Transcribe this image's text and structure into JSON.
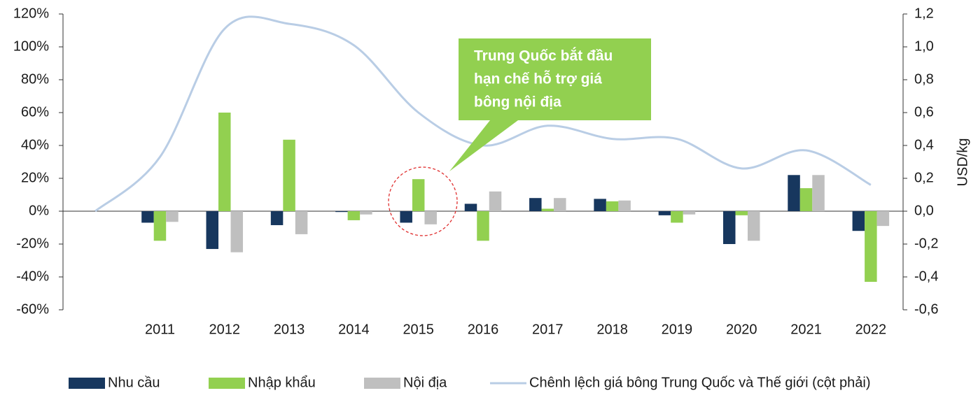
{
  "chart_data": {
    "type": "bar",
    "categories": [
      null,
      "2011",
      "2012",
      "2013",
      "2014",
      "2015",
      "2016",
      "2017",
      "2018",
      "2019",
      "2020",
      "2021",
      "2022"
    ],
    "series": [
      {
        "name": "Nhu cầu",
        "color": "#17375e",
        "values": [
          null,
          -7,
          -23,
          -8.5,
          -0.5,
          -7,
          4.5,
          8,
          7.5,
          -2.5,
          -20,
          22,
          -12
        ]
      },
      {
        "name": "Nhập khẩu",
        "color": "#92d050",
        "values": [
          null,
          -18,
          60,
          43.5,
          -5.5,
          19.5,
          -18,
          1.5,
          6,
          -7,
          -2.5,
          14,
          -43
        ]
      },
      {
        "name": "Nội địa",
        "color": "#bfbfbf",
        "values": [
          null,
          -6.5,
          -25,
          -14,
          -2,
          -8,
          12,
          8,
          6.5,
          -2,
          -18,
          22,
          -9
        ]
      },
      {
        "name": "Chênh lệch giá bông Trung Quốc và Thế giới (cột phải)",
        "color": "#b9cde5",
        "type": "line",
        "axis": "y2",
        "values": [
          0,
          0.33,
          1.11,
          1.14,
          1.01,
          0.6,
          0.4,
          0.52,
          0.44,
          0.44,
          0.26,
          0.37,
          0.16
        ]
      }
    ],
    "ylim": [
      -60,
      120
    ],
    "yticks": [
      {
        "value": -60,
        "label": "-60%"
      },
      {
        "value": -40,
        "label": "-40%"
      },
      {
        "value": -20,
        "label": "-20%"
      },
      {
        "value": 0,
        "label": "0%"
      },
      {
        "value": 20,
        "label": "20%"
      },
      {
        "value": 40,
        "label": "40%"
      },
      {
        "value": 60,
        "label": "60%"
      },
      {
        "value": 80,
        "label": "80%"
      },
      {
        "value": 100,
        "label": "100%"
      },
      {
        "value": 120,
        "label": "120%"
      }
    ],
    "y2lim": [
      -0.6,
      1.2
    ],
    "y2ticks": [
      {
        "value": -0.6,
        "label": "-0,6"
      },
      {
        "value": -0.4,
        "label": "-0,4"
      },
      {
        "value": -0.2,
        "label": "-0,2"
      },
      {
        "value": 0,
        "label": "0,0"
      },
      {
        "value": 0.2,
        "label": "0,2"
      },
      {
        "value": 0.4,
        "label": "0,4"
      },
      {
        "value": 0.6,
        "label": "0,6"
      },
      {
        "value": 0.8,
        "label": "0,8"
      },
      {
        "value": 1.0,
        "label": "1,0"
      },
      {
        "value": 1.2,
        "label": "1,2"
      }
    ],
    "y2label": "USD/kg",
    "annotation": [
      "Trung Quốc bắt đầu",
      "hạn chế hỗ trợ giá",
      "bông nội địa"
    ],
    "grid": false,
    "legend": "bottom"
  }
}
